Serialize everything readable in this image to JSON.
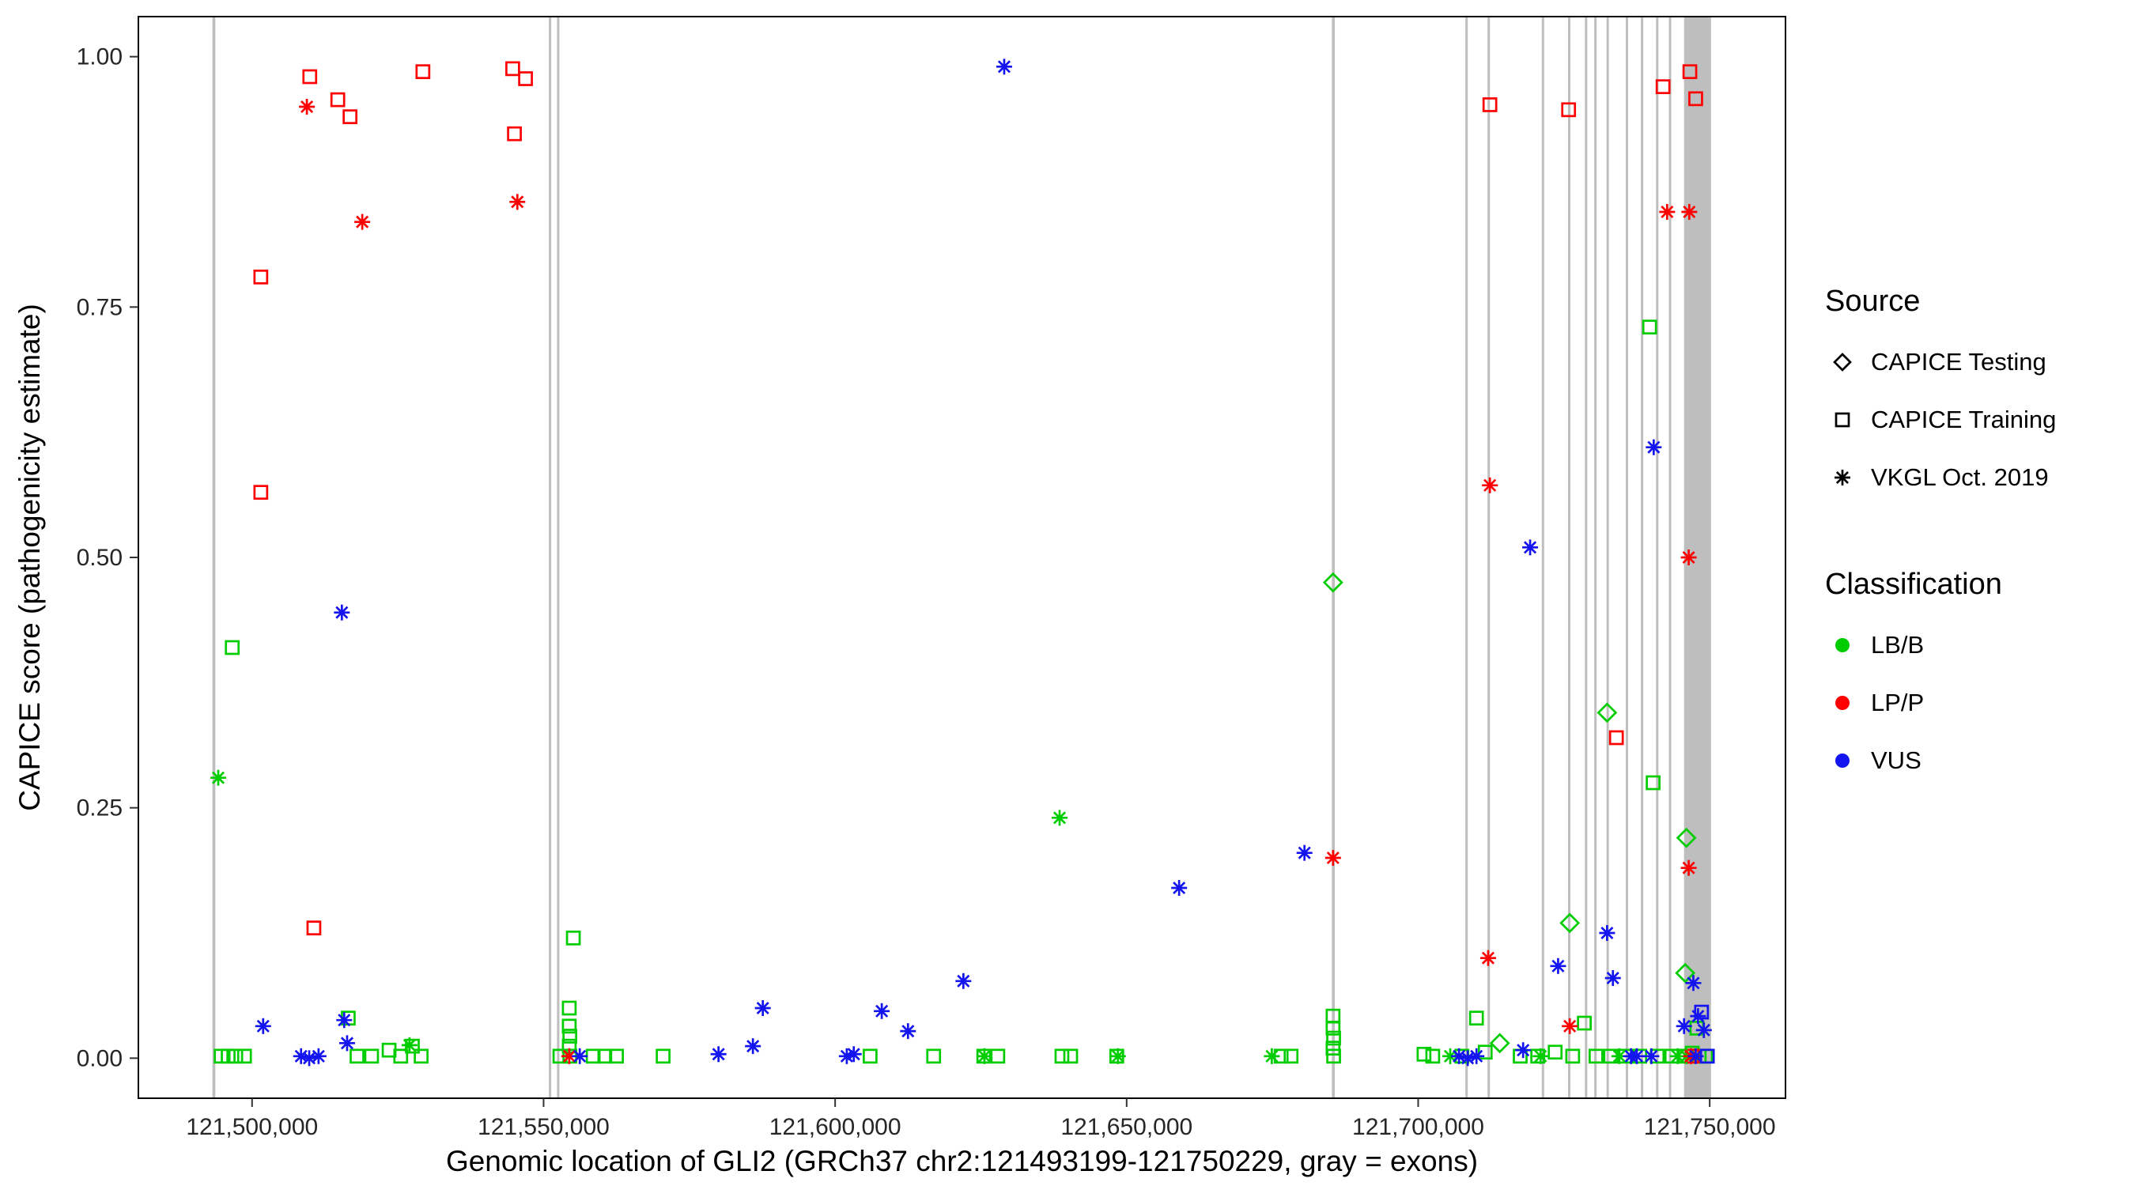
{
  "figure": {
    "x_axis_title": "Genomic location of GLI2 (GRCh37 chr2:121493199-121750229, gray = exons)",
    "y_axis_title": "CAPICE score (pathogenicity estimate)"
  },
  "legend": {
    "source": {
      "title": "Source",
      "items": [
        {
          "label": "CAPICE Testing",
          "shape": "diamond"
        },
        {
          "label": "CAPICE Training",
          "shape": "square"
        },
        {
          "label": "VKGL Oct. 2019",
          "shape": "asterisk"
        }
      ]
    },
    "classification": {
      "title": "Classification",
      "items": [
        {
          "label": "LB/B",
          "color": "#00CD00"
        },
        {
          "label": "LP/P",
          "color": "#FF0000"
        },
        {
          "label": "VUS",
          "color": "#1414F0"
        }
      ]
    }
  },
  "chart_data": {
    "type": "scatter",
    "title": "",
    "xlabel": "Genomic location of GLI2 (GRCh37 chr2:121493199-121750229, gray = exons)",
    "ylabel": "CAPICE score (pathogenicity estimate)",
    "x_domain": [
      121480500,
      121763000
    ],
    "y_domain": [
      -0.04,
      1.04
    ],
    "x_ticks": [
      {
        "value": 121500000,
        "label": "121,500,000"
      },
      {
        "value": 121550000,
        "label": "121,550,000"
      },
      {
        "value": 121600000,
        "label": "121,600,000"
      },
      {
        "value": 121650000,
        "label": "121,650,000"
      },
      {
        "value": 121700000,
        "label": "121,700,000"
      },
      {
        "value": 121750000,
        "label": "121,750,000"
      }
    ],
    "y_ticks": [
      {
        "value": 0.0,
        "label": "0.00"
      },
      {
        "value": 0.25,
        "label": "0.25"
      },
      {
        "value": 0.5,
        "label": "0.50"
      },
      {
        "value": 0.75,
        "label": "0.75"
      },
      {
        "value": 1.0,
        "label": "1.00"
      }
    ],
    "colors": {
      "LB/B": "#00CD00",
      "LP/P": "#FF0000",
      "VUS": "#1414F0"
    },
    "shapes": {
      "CAPICE Testing": "diamond",
      "CAPICE Training": "square",
      "VKGL Oct. 2019": "asterisk"
    },
    "exon_color": "#BEBEBE",
    "exons": [
      [
        121493199,
        121493700
      ],
      [
        121550900,
        121551300
      ],
      [
        121552300,
        121552700
      ],
      [
        121685200,
        121685700
      ],
      [
        121708100,
        121708500
      ],
      [
        121711900,
        121712300
      ],
      [
        121721200,
        121721600
      ],
      [
        121725700,
        121726100
      ],
      [
        121728600,
        121729000
      ],
      [
        121730200,
        121730600
      ],
      [
        121732300,
        121732700
      ],
      [
        121735600,
        121736000
      ],
      [
        121738200,
        121738600
      ],
      [
        121740800,
        121741200
      ],
      [
        121743000,
        121743400
      ],
      [
        121745600,
        121750229
      ]
    ],
    "series": [
      {
        "source": "CAPICE Testing",
        "classification": "LB/B",
        "points": [
          [
            121685400,
            0.475
          ],
          [
            121714000,
            0.015
          ],
          [
            121726000,
            0.135
          ],
          [
            121732400,
            0.345
          ],
          [
            121745800,
            0.085
          ],
          [
            121746000,
            0.22
          ]
        ]
      },
      {
        "source": "CAPICE Training",
        "classification": "LB/B",
        "points": [
          [
            121494700,
            0.002
          ],
          [
            121495900,
            0.002
          ],
          [
            121497200,
            0.002
          ],
          [
            121498700,
            0.002
          ],
          [
            121496600,
            0.41
          ],
          [
            121516500,
            0.04
          ],
          [
            121518000,
            0.002
          ],
          [
            121520500,
            0.002
          ],
          [
            121523500,
            0.008
          ],
          [
            121525500,
            0.002
          ],
          [
            121527500,
            0.012
          ],
          [
            121529000,
            0.002
          ],
          [
            121552800,
            0.002
          ],
          [
            121554400,
            0.05
          ],
          [
            121554400,
            0.032
          ],
          [
            121554500,
            0.022
          ],
          [
            121554400,
            0.012
          ],
          [
            121554500,
            0.002
          ],
          [
            121555100,
            0.12
          ],
          [
            121558500,
            0.002
          ],
          [
            121560500,
            0.002
          ],
          [
            121562500,
            0.002
          ],
          [
            121570500,
            0.002
          ],
          [
            121606000,
            0.002
          ],
          [
            121616900,
            0.002
          ],
          [
            121625500,
            0.002
          ],
          [
            121627900,
            0.002
          ],
          [
            121638900,
            0.002
          ],
          [
            121640400,
            0.002
          ],
          [
            121648300,
            0.002
          ],
          [
            121676500,
            0.002
          ],
          [
            121678200,
            0.002
          ],
          [
            121685400,
            0.042
          ],
          [
            121685400,
            0.03
          ],
          [
            121685500,
            0.02
          ],
          [
            121685400,
            0.01
          ],
          [
            121685500,
            0.002
          ],
          [
            121701000,
            0.004
          ],
          [
            121702500,
            0.002
          ],
          [
            121707500,
            0.002
          ],
          [
            121710000,
            0.04
          ],
          [
            121711500,
            0.006
          ],
          [
            121717500,
            0.002
          ],
          [
            121720500,
            0.002
          ],
          [
            121723500,
            0.006
          ],
          [
            121726500,
            0.002
          ],
          [
            121728500,
            0.035
          ],
          [
            121730500,
            0.002
          ],
          [
            121733000,
            0.002
          ],
          [
            121735500,
            0.002
          ],
          [
            121738000,
            0.002
          ],
          [
            121739700,
            0.73
          ],
          [
            121740300,
            0.275
          ],
          [
            121741000,
            0.002
          ],
          [
            121743500,
            0.002
          ],
          [
            121745800,
            0.002
          ],
          [
            121747000,
            0.005
          ],
          [
            121747800,
            0.03
          ],
          [
            121748200,
            0.002
          ],
          [
            121749300,
            0.002
          ]
        ]
      },
      {
        "source": "CAPICE Training",
        "classification": "LP/P",
        "points": [
          [
            121501500,
            0.78
          ],
          [
            121501500,
            0.565
          ],
          [
            121509900,
            0.98
          ],
          [
            121510600,
            0.13
          ],
          [
            121514700,
            0.957
          ],
          [
            121516800,
            0.94
          ],
          [
            121529300,
            0.985
          ],
          [
            121544700,
            0.988
          ],
          [
            121546900,
            0.978
          ],
          [
            121545000,
            0.923
          ],
          [
            121712300,
            0.952
          ],
          [
            121725800,
            0.947
          ],
          [
            121734000,
            0.32
          ],
          [
            121742000,
            0.97
          ],
          [
            121746600,
            0.985
          ],
          [
            121747600,
            0.958
          ],
          [
            121747000,
            0.002
          ]
        ]
      },
      {
        "source": "CAPICE Training",
        "classification": "VUS",
        "points": [
          [
            121748600,
            0.046
          ],
          [
            121749600,
            0.002
          ]
        ]
      },
      {
        "source": "VKGL Oct. 2019",
        "classification": "LB/B",
        "points": [
          [
            121494200,
            0.28
          ],
          [
            121527000,
            0.013
          ],
          [
            121638500,
            0.24
          ],
          [
            121625600,
            0.002
          ],
          [
            121648500,
            0.002
          ],
          [
            121674900,
            0.002
          ],
          [
            121705500,
            0.002
          ],
          [
            121721000,
            0.002
          ],
          [
            121734500,
            0.002
          ],
          [
            121744500,
            0.002
          ],
          [
            121746000,
            0.002
          ]
        ]
      },
      {
        "source": "VKGL Oct. 2019",
        "classification": "LP/P",
        "points": [
          [
            121509400,
            0.95
          ],
          [
            121518900,
            0.835
          ],
          [
            121545500,
            0.855
          ],
          [
            121554400,
            0.002
          ],
          [
            121685400,
            0.2
          ],
          [
            121712300,
            0.572
          ],
          [
            121712000,
            0.1
          ],
          [
            121726000,
            0.032
          ],
          [
            121742700,
            0.845
          ],
          [
            121746500,
            0.845
          ],
          [
            121746400,
            0.5
          ],
          [
            121746400,
            0.19
          ],
          [
            121746800,
            0.002
          ]
        ]
      },
      {
        "source": "VKGL Oct. 2019",
        "classification": "VUS",
        "points": [
          [
            121501900,
            0.032
          ],
          [
            121508400,
            0.002
          ],
          [
            121509800,
            0.0
          ],
          [
            121511400,
            0.002
          ],
          [
            121515400,
            0.445
          ],
          [
            121515800,
            0.038
          ],
          [
            121516300,
            0.015
          ],
          [
            121556200,
            0.002
          ],
          [
            121580000,
            0.004
          ],
          [
            121585900,
            0.012
          ],
          [
            121587600,
            0.05
          ],
          [
            121602000,
            0.002
          ],
          [
            121603200,
            0.004
          ],
          [
            121608000,
            0.047
          ],
          [
            121612500,
            0.027
          ],
          [
            121622000,
            0.077
          ],
          [
            121629000,
            0.99
          ],
          [
            121659000,
            0.17
          ],
          [
            121680500,
            0.205
          ],
          [
            121707000,
            0.002
          ],
          [
            121708500,
            0.0
          ],
          [
            121710000,
            0.002
          ],
          [
            121718000,
            0.008
          ],
          [
            121719200,
            0.51
          ],
          [
            121724000,
            0.092
          ],
          [
            121732400,
            0.125
          ],
          [
            121733400,
            0.08
          ],
          [
            121736500,
            0.002
          ],
          [
            121737500,
            0.002
          ],
          [
            121740000,
            0.002
          ],
          [
            121740400,
            0.61
          ],
          [
            121745600,
            0.032
          ],
          [
            121747200,
            0.075
          ],
          [
            121748000,
            0.042
          ],
          [
            121749000,
            0.028
          ],
          [
            121747600,
            0.002
          ]
        ]
      }
    ]
  }
}
